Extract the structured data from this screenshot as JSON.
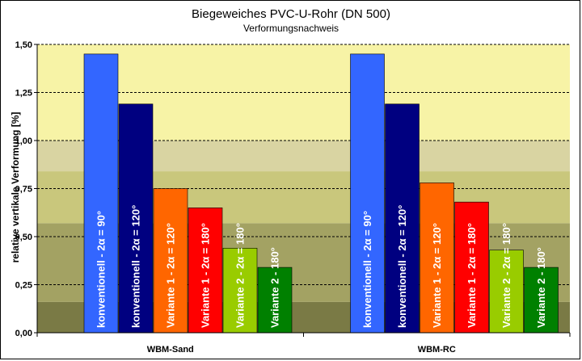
{
  "chart_data": {
    "type": "bar",
    "title": "Biegeweiches PVC-U-Rohr (DN 500)",
    "subtitle": "Verformungsnachweis",
    "ylabel": "relative vertikale Verformung [%]",
    "xlabel": "",
    "ylim": [
      0,
      1.5
    ],
    "yticks": [
      "0,00",
      "0,25",
      "0,50",
      "0,75",
      "1,00",
      "1,25",
      "1,50"
    ],
    "categories": [
      "WBM-Sand",
      "WBM-RC"
    ],
    "series": [
      {
        "name": "konventionell - 2α = 90°",
        "color": "#3366ff",
        "values": [
          1.45,
          1.45
        ]
      },
      {
        "name": "konventionell - 2α = 120°",
        "color": "#000080",
        "values": [
          1.19,
          1.19
        ]
      },
      {
        "name": "Variante 1 - 2α = 120°",
        "color": "#ff6600",
        "values": [
          0.75,
          0.78
        ]
      },
      {
        "name": "Variante 1 - 2α = 180°",
        "color": "#ff0000",
        "values": [
          0.65,
          0.68
        ]
      },
      {
        "name": "Variante 2 - 2α = 180°",
        "color": "#99cc00",
        "values": [
          0.44,
          0.43
        ]
      },
      {
        "name": "Variante 2 - 180°",
        "color": "#008000",
        "values": [
          0.34,
          0.34
        ]
      }
    ],
    "background_bands": [
      {
        "from": 0,
        "to": 0.16,
        "color": "#7a7a45"
      },
      {
        "from": 0.16,
        "to": 0.57,
        "color": "#a3a263"
      },
      {
        "from": 0.57,
        "to": 0.84,
        "color": "#c9c77c"
      },
      {
        "from": 0.84,
        "to": 1.0,
        "color": "#d9d4a2"
      },
      {
        "from": 1.0,
        "to": 1.5,
        "color": "#f7f3a6"
      }
    ],
    "grid": true,
    "legend": "none"
  }
}
